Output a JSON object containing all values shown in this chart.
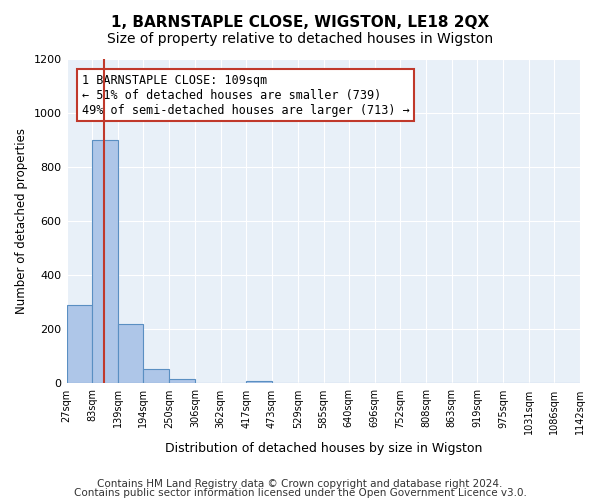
{
  "title": "1, BARNSTAPLE CLOSE, WIGSTON, LE18 2QX",
  "subtitle": "Size of property relative to detached houses in Wigston",
  "xlabel": "Distribution of detached houses by size in Wigston",
  "ylabel": "Number of detached properties",
  "bin_labels": [
    "27sqm",
    "83sqm",
    "139sqm",
    "194sqm",
    "250sqm",
    "306sqm",
    "362sqm",
    "417sqm",
    "473sqm",
    "529sqm",
    "585sqm",
    "640sqm",
    "696sqm",
    "752sqm",
    "808sqm",
    "863sqm",
    "919sqm",
    "975sqm",
    "1031sqm",
    "1086sqm",
    "1142sqm"
  ],
  "bar_values": [
    290,
    900,
    220,
    52,
    15,
    0,
    0,
    10,
    0,
    0,
    0,
    0,
    0,
    0,
    0,
    0,
    0,
    0,
    0,
    0
  ],
  "bar_color": "#aec6e8",
  "bar_edge_color": "#5a8fc2",
  "subject_line_color": "#c0392b",
  "subject_sqm": 109,
  "bin_starts": [
    27,
    83,
    139,
    194,
    250,
    306,
    362,
    417,
    473,
    529,
    585,
    640,
    696,
    752,
    808,
    863,
    919,
    975,
    1031,
    1086
  ],
  "bin_ends": [
    83,
    139,
    194,
    250,
    306,
    362,
    417,
    473,
    529,
    585,
    640,
    696,
    752,
    808,
    863,
    919,
    975,
    1031,
    1086,
    1142
  ],
  "annotation_text": "1 BARNSTAPLE CLOSE: 109sqm\n← 51% of detached houses are smaller (739)\n49% of semi-detached houses are larger (713) →",
  "annotation_box_color": "#ffffff",
  "annotation_box_edge_color": "#c0392b",
  "ylim": [
    0,
    1200
  ],
  "yticks": [
    0,
    200,
    400,
    600,
    800,
    1000,
    1200
  ],
  "background_color": "#e8f0f8",
  "footer_line1": "Contains HM Land Registry data © Crown copyright and database right 2024.",
  "footer_line2": "Contains public sector information licensed under the Open Government Licence v3.0.",
  "title_fontsize": 11,
  "subtitle_fontsize": 10,
  "annot_fontsize": 8.5,
  "footer_fontsize": 7.5
}
